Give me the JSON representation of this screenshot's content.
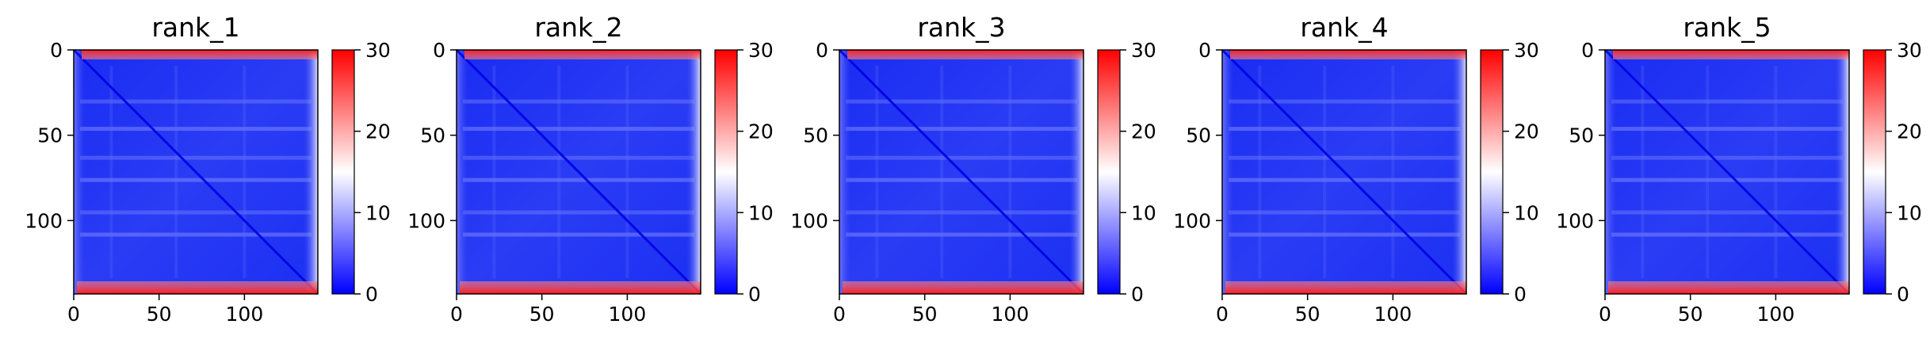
{
  "chart_data": [
    {
      "type": "heatmap",
      "title": "rank_1",
      "xticks": [
        0,
        50,
        100
      ],
      "yticks": [
        0,
        50,
        100
      ],
      "xlim": [
        0,
        143
      ],
      "ylim": [
        143,
        0
      ],
      "colorbar": {
        "ticks": [
          0,
          10,
          20,
          30
        ],
        "range": [
          0,
          30
        ],
        "colors": [
          "#0000ff",
          "#ffffff",
          "#ff0000"
        ]
      }
    },
    {
      "type": "heatmap",
      "title": "rank_2",
      "xticks": [
        0,
        50,
        100
      ],
      "yticks": [
        0,
        50,
        100
      ],
      "xlim": [
        0,
        143
      ],
      "ylim": [
        143,
        0
      ],
      "colorbar": {
        "ticks": [
          0,
          10,
          20,
          30
        ],
        "range": [
          0,
          30
        ],
        "colors": [
          "#0000ff",
          "#ffffff",
          "#ff0000"
        ]
      }
    },
    {
      "type": "heatmap",
      "title": "rank_3",
      "xticks": [
        0,
        50,
        100
      ],
      "yticks": [
        0,
        50,
        100
      ],
      "xlim": [
        0,
        143
      ],
      "ylim": [
        143,
        0
      ],
      "colorbar": {
        "ticks": [
          0,
          10,
          20,
          30
        ],
        "range": [
          0,
          30
        ],
        "colors": [
          "#0000ff",
          "#ffffff",
          "#ff0000"
        ]
      }
    },
    {
      "type": "heatmap",
      "title": "rank_4",
      "xticks": [
        0,
        50,
        100
      ],
      "yticks": [
        0,
        50,
        100
      ],
      "xlim": [
        0,
        143
      ],
      "ylim": [
        143,
        0
      ],
      "colorbar": {
        "ticks": [
          0,
          10,
          20,
          30
        ],
        "range": [
          0,
          30
        ],
        "colors": [
          "#0000ff",
          "#ffffff",
          "#ff0000"
        ]
      }
    },
    {
      "type": "heatmap",
      "title": "rank_5",
      "xticks": [
        0,
        50,
        100
      ],
      "yticks": [
        0,
        50,
        100
      ],
      "xlim": [
        0,
        143
      ],
      "ylim": [
        143,
        0
      ],
      "colorbar": {
        "ticks": [
          0,
          10,
          20,
          30
        ],
        "range": [
          0,
          30
        ],
        "colors": [
          "#0000ff",
          "#ffffff",
          "#ff0000"
        ]
      }
    }
  ]
}
